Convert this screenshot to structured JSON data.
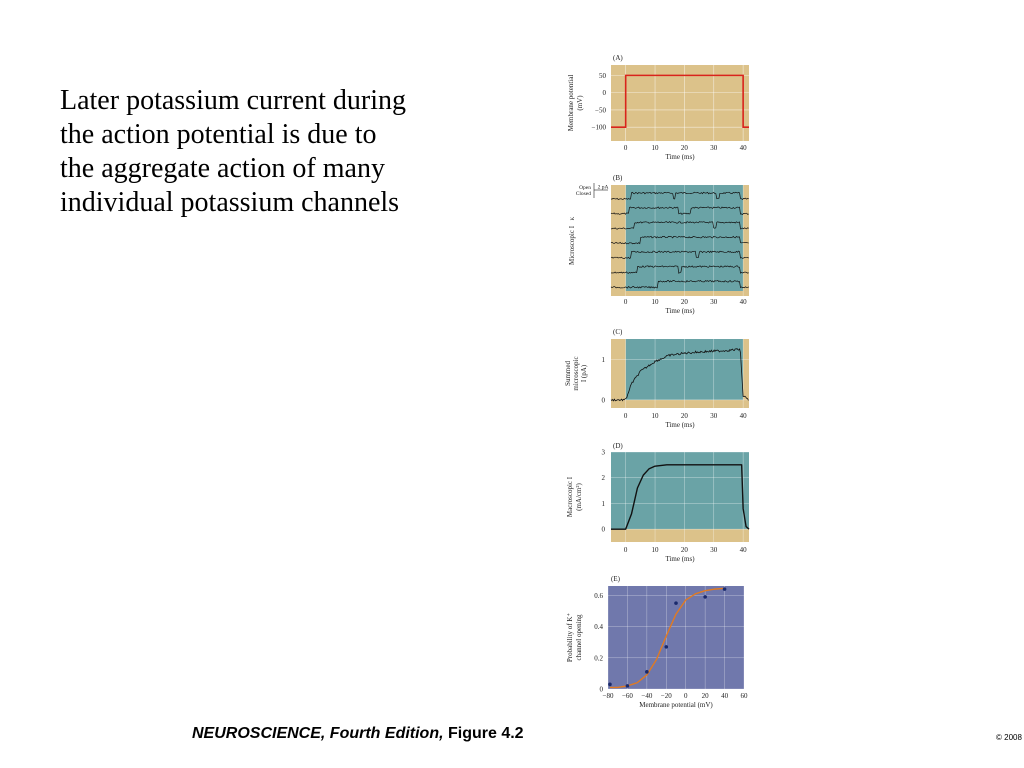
{
  "slide": {
    "text_lines": [
      "Later potassium current during",
      "the action potential is due to",
      "the aggregate action of many",
      "individual potassium channels"
    ]
  },
  "footer": {
    "caption_italic": "NEUROSCIENCE, Fourth Edition,",
    "caption_rest": " Figure 4.2",
    "copyright": "© 2008"
  },
  "colors": {
    "tan_bg": "#dcc28a",
    "teal_bg": "#6aa3a6",
    "purple_bg": "#7078ac",
    "red_line": "#d9241c",
    "orange_fit": "#e07a22",
    "point_color": "#1a2a6c",
    "trace_color": "#111111",
    "grid": "#ffffff"
  },
  "chart_data": [
    {
      "panel": "(A)",
      "type": "line",
      "ylabel": "Membrane potential (mV)",
      "xlabel": "Time (ms)",
      "xlim": [
        -5,
        42
      ],
      "ylim": [
        -140,
        80
      ],
      "x_ticks": [
        0,
        10,
        20,
        30,
        40
      ],
      "y_ticks": [
        50,
        0,
        -50,
        -100
      ],
      "y_tick_labels": [
        "50",
        "0",
        "−50",
        "−100"
      ],
      "series": [
        {
          "x": [
            -5,
            0,
            0,
            40,
            40,
            42
          ],
          "y": [
            -100,
            -100,
            50,
            50,
            -100,
            -100
          ]
        }
      ]
    },
    {
      "panel": "(B)",
      "type": "line",
      "ylabel": "Microscopic I_K",
      "xlabel": "Time (ms)",
      "xlim": [
        -5,
        42
      ],
      "x_ticks": [
        0,
        10,
        20,
        30,
        40
      ],
      "scale_labels": {
        "open": "Open",
        "closed": "Closed",
        "bar": "2 pA"
      },
      "sweep_count": 7,
      "channel_open_intervals_ms": [
        [
          [
            2,
            16
          ],
          [
            17,
            31
          ],
          [
            32,
            39
          ]
        ],
        [
          [
            1,
            18
          ],
          [
            22,
            39
          ]
        ],
        [
          [
            3,
            30
          ],
          [
            31,
            39
          ]
        ],
        [
          [
            5,
            39
          ]
        ],
        [
          [
            2,
            24
          ],
          [
            25,
            39
          ]
        ],
        [
          [
            4,
            18
          ],
          [
            19,
            39
          ]
        ],
        [
          [
            11,
            39
          ]
        ]
      ]
    },
    {
      "panel": "(C)",
      "type": "line",
      "ylabel": "Summed microscopic I_K (pA)",
      "xlabel": "Time (ms)",
      "xlim": [
        -5,
        42
      ],
      "ylim": [
        -0.2,
        1.5
      ],
      "x_ticks": [
        0,
        10,
        20,
        30,
        40
      ],
      "y_ticks": [
        0,
        1
      ],
      "series": [
        {
          "x": [
            -5,
            0,
            2,
            5,
            10,
            15,
            20,
            25,
            30,
            35,
            39,
            40,
            42
          ],
          "y": [
            0,
            0,
            0.4,
            0.7,
            0.95,
            1.1,
            1.15,
            1.18,
            1.2,
            1.22,
            1.25,
            0.1,
            0
          ]
        }
      ]
    },
    {
      "panel": "(D)",
      "type": "line",
      "ylabel": "Macroscopic I_K (mA/cm²)",
      "xlabel": "Time (ms)",
      "xlim": [
        -5,
        42
      ],
      "ylim": [
        -0.5,
        3
      ],
      "x_ticks": [
        0,
        10,
        20,
        30,
        40
      ],
      "y_ticks": [
        0,
        1,
        2,
        3
      ],
      "series": [
        {
          "x": [
            -5,
            0,
            2,
            4,
            6,
            8,
            10,
            14,
            20,
            30,
            39.5,
            40,
            41,
            42
          ],
          "y": [
            0,
            0,
            0.6,
            1.6,
            2.1,
            2.35,
            2.45,
            2.5,
            2.5,
            2.5,
            2.5,
            0.8,
            0.1,
            0
          ]
        }
      ]
    },
    {
      "panel": "(E)",
      "type": "scatter",
      "ylabel": "Probability of K⁺ channel opening",
      "xlabel": "Membrane potential (mV)",
      "xlim": [
        -80,
        60
      ],
      "ylim": [
        0,
        0.66
      ],
      "x_ticks": [
        -80,
        -60,
        -40,
        -20,
        0,
        20,
        40,
        60
      ],
      "x_tick_labels": [
        "−80",
        "−60",
        "−40",
        "−20",
        "0",
        "20",
        "40",
        "60"
      ],
      "y_ticks": [
        0,
        0.2,
        0.4,
        0.6
      ],
      "y_tick_labels": [
        "0",
        "0.2",
        "0.4",
        "0.6"
      ],
      "points": {
        "x": [
          -78,
          -60,
          -40,
          -20,
          -10,
          20,
          40
        ],
        "y": [
          0.03,
          0.02,
          0.11,
          0.27,
          0.55,
          0.59,
          0.64
        ]
      },
      "fit": {
        "x": [
          -78,
          -70,
          -60,
          -50,
          -40,
          -30,
          -20,
          -10,
          0,
          10,
          20,
          30,
          40
        ],
        "y": [
          0.01,
          0.01,
          0.02,
          0.04,
          0.09,
          0.19,
          0.34,
          0.48,
          0.57,
          0.61,
          0.63,
          0.64,
          0.645
        ]
      }
    }
  ]
}
